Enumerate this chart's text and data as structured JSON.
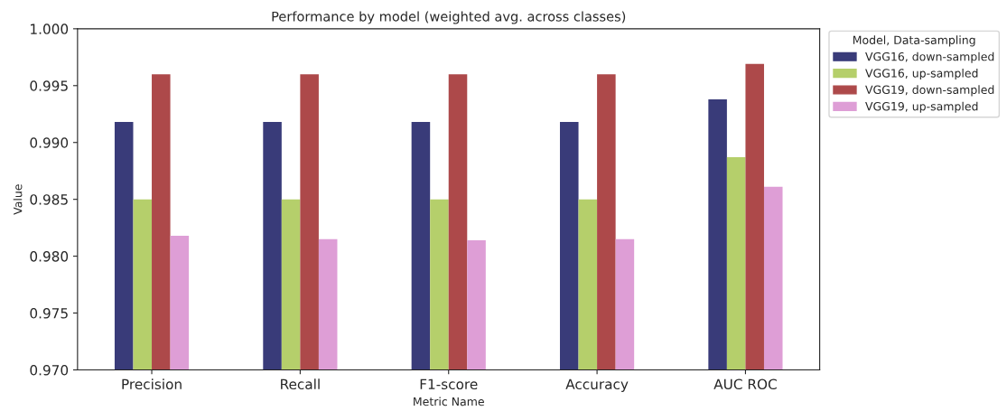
{
  "chart_data": {
    "type": "bar",
    "title": "Performance by model (weighted avg. across classes)",
    "xlabel": "Metric Name",
    "ylabel": "Value",
    "legend_title": "Model, Data-sampling",
    "categories": [
      "Precision",
      "Recall",
      "F1-score",
      "Accuracy",
      "AUC ROC"
    ],
    "series": [
      {
        "name": "VGG16, down-sampled",
        "color": "#393b79",
        "values": [
          0.9918,
          0.9918,
          0.9918,
          0.9918,
          0.9938
        ]
      },
      {
        "name": "VGG16, up-sampled",
        "color": "#b5cf6b",
        "values": [
          0.985,
          0.985,
          0.985,
          0.985,
          0.9887
        ]
      },
      {
        "name": "VGG19, down-sampled",
        "color": "#ad494a",
        "values": [
          0.996,
          0.996,
          0.996,
          0.996,
          0.9969
        ]
      },
      {
        "name": "VGG19, up-sampled",
        "color": "#de9ed6",
        "values": [
          0.9818,
          0.9815,
          0.9814,
          0.9815,
          0.9861
        ]
      }
    ],
    "ylim": [
      0.97,
      1.0
    ],
    "yticks": [
      {
        "value": 0.97,
        "label": "0.970"
      },
      {
        "value": 0.975,
        "label": "0.975"
      },
      {
        "value": 0.98,
        "label": "0.980"
      },
      {
        "value": 0.985,
        "label": "0.985"
      },
      {
        "value": 0.99,
        "label": "0.990"
      },
      {
        "value": 0.995,
        "label": "0.995"
      },
      {
        "value": 1.0,
        "label": "1.000"
      }
    ],
    "grid": false,
    "legend": "outside top right"
  }
}
